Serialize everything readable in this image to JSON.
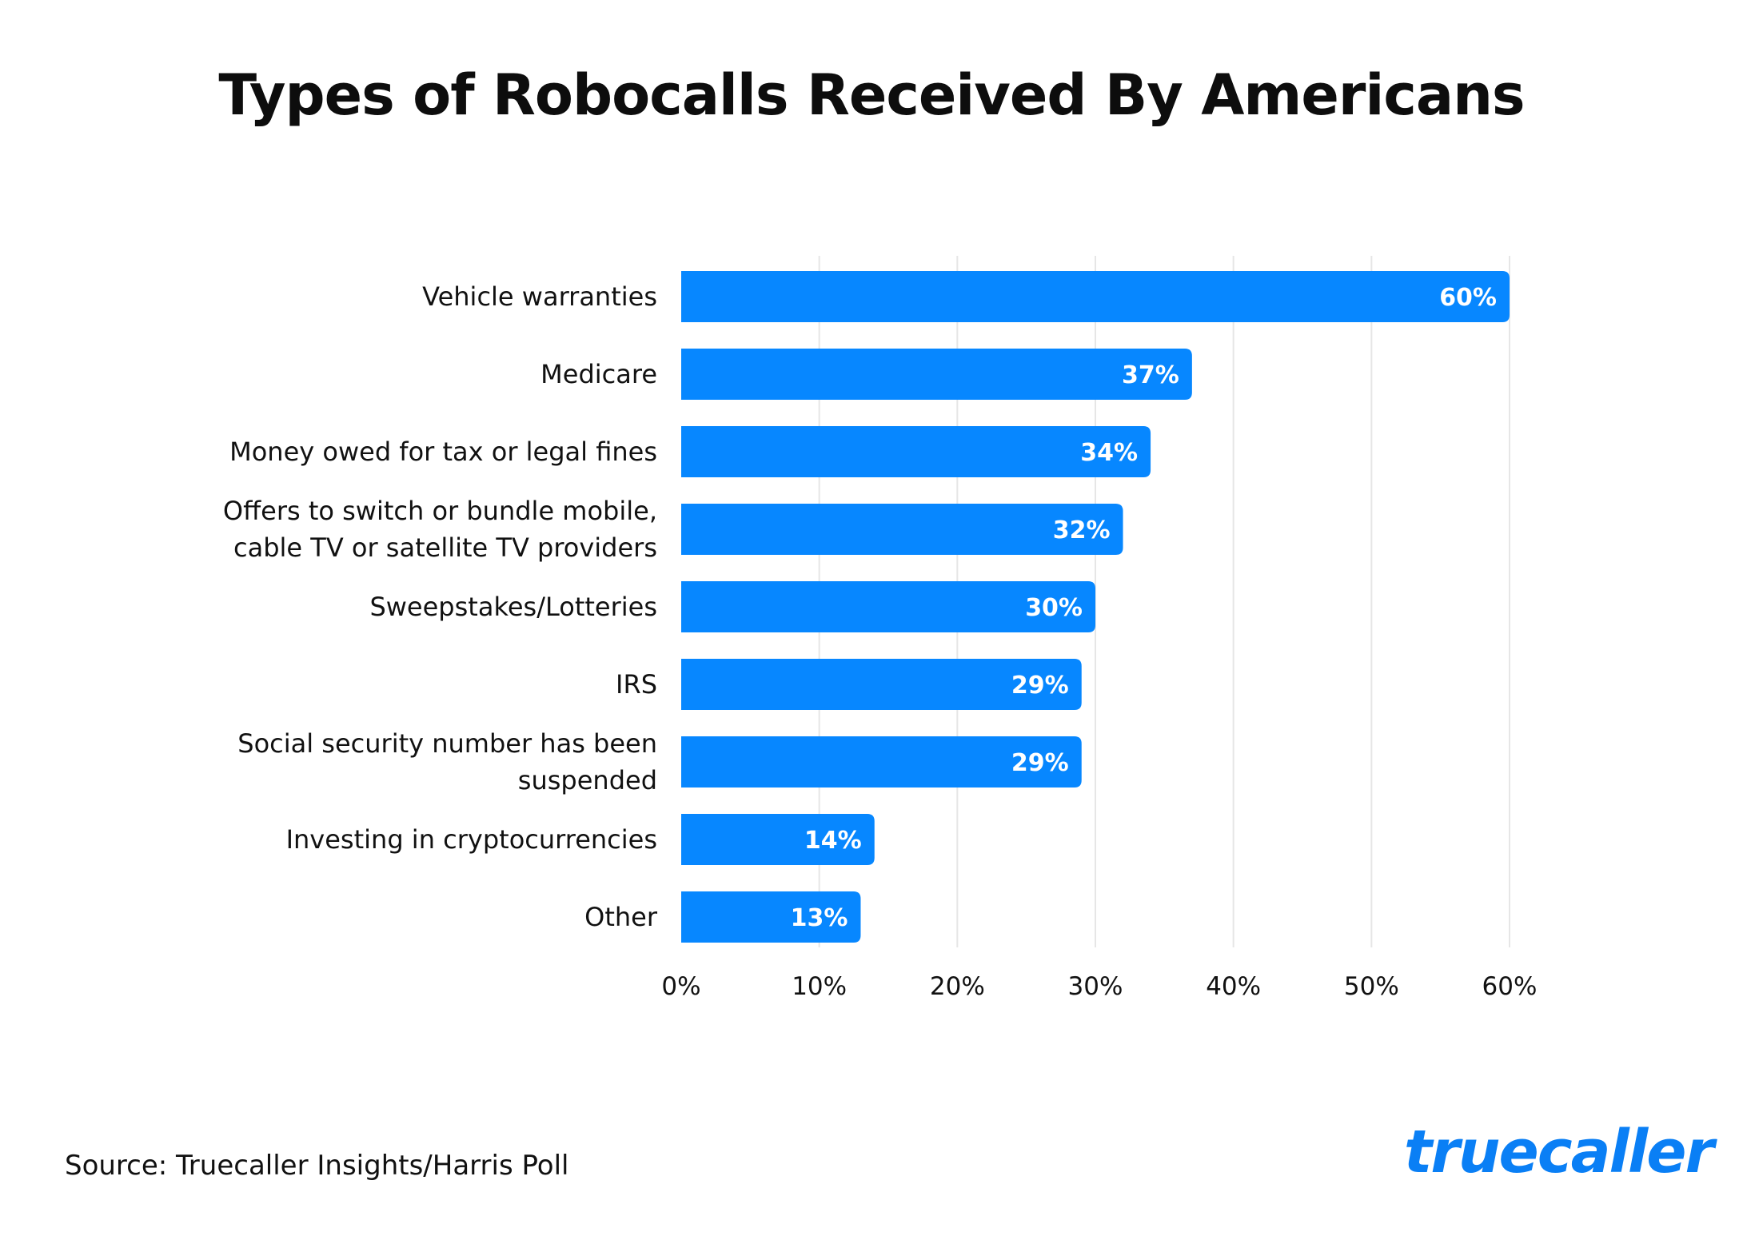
{
  "chart_data": {
    "type": "bar",
    "orientation": "horizontal",
    "title": "Types of Robocalls Received By Americans",
    "categories": [
      [
        "Vehicle warranties"
      ],
      [
        "Medicare"
      ],
      [
        "Money owed for tax or legal fines"
      ],
      [
        "Offers to switch or bundle mobile,",
        "cable TV or satellite TV providers"
      ],
      [
        "Sweepstakes/Lotteries"
      ],
      [
        "IRS"
      ],
      [
        "Social security number has been",
        "suspended"
      ],
      [
        "Investing in cryptocurrencies"
      ],
      [
        "Other"
      ]
    ],
    "values": [
      60,
      37,
      34,
      32,
      30,
      29,
      29,
      14,
      13
    ],
    "value_labels": [
      "60%",
      "37%",
      "34%",
      "32%",
      "30%",
      "29%",
      "29%",
      "14%",
      "13%"
    ],
    "xlim": [
      0,
      60
    ],
    "xticks": [
      0,
      10,
      20,
      30,
      40,
      50,
      60
    ],
    "xtick_labels": [
      "0%",
      "10%",
      "20%",
      "30%",
      "40%",
      "50%",
      "60%"
    ],
    "xlabel": "",
    "ylabel": "",
    "grid": true,
    "legend": "none",
    "bar_color": "#0787ff",
    "grid_color": "#e6e6e6"
  },
  "footer": {
    "source": "Source: Truecaller Insights/Harris Poll",
    "logo_text": "truecaller",
    "logo_color": "#0a7ff5"
  }
}
